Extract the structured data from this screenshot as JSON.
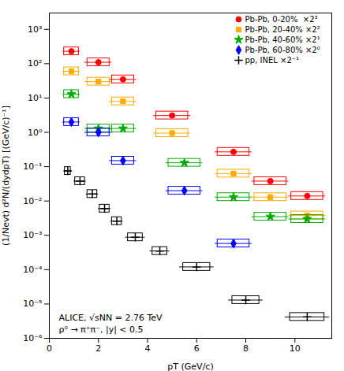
{
  "chart_data": {
    "type": "scatter",
    "xlabel": "pT (GeV/c)",
    "ylabel": "(1/Nevt) d²N/(dydpT) [(GeV/c)⁻¹]",
    "xlim": [
      0,
      11.5
    ],
    "xticks": [
      0,
      2,
      4,
      6,
      8,
      10
    ],
    "ylim": [
      1e-06,
      3000
    ],
    "yticks": [
      {
        "value": 1e-06,
        "label": "10⁻⁶"
      },
      {
        "value": 1e-05,
        "label": "10⁻⁵"
      },
      {
        "value": 0.0001,
        "label": "10⁻⁴"
      },
      {
        "value": 0.001,
        "label": "10⁻³"
      },
      {
        "value": 0.01,
        "label": "10⁻²"
      },
      {
        "value": 0.1,
        "label": "10⁻¹"
      },
      {
        "value": 1,
        "label": "10⁰"
      },
      {
        "value": 10,
        "label": "10¹"
      },
      {
        "value": 100,
        "label": "10²"
      },
      {
        "value": 1000,
        "label": "10³"
      }
    ],
    "log": "y",
    "grid": false,
    "legend": "upper right",
    "annotations": [
      "ALICE, √sNN = 2.76 TeV",
      "ρ⁰ → π⁺π⁻, |y| < 0.5"
    ],
    "series": [
      {
        "name": "Pb-Pb, 0-20%  ×2³",
        "color": "#ff0000",
        "marker": "circle",
        "x": [
          0.9,
          2.0,
          3.0,
          5.0,
          7.5,
          9.0,
          10.5
        ],
        "values": [
          230.0,
          110.0,
          35.0,
          3.1,
          0.27,
          0.038,
          0.014
        ],
        "xerr": [
          0.35,
          0.55,
          0.55,
          0.75,
          0.75,
          0.75,
          0.75
        ],
        "xerr_sys": [
          0.3,
          0.45,
          0.45,
          0.65,
          0.65,
          0.65,
          0.65
        ]
      },
      {
        "name": "Pb-Pb, 20-40% ×2²",
        "color": "#ffaa00",
        "marker": "square",
        "x": [
          0.9,
          2.0,
          3.0,
          5.0,
          7.5,
          9.0,
          10.5
        ],
        "values": [
          60.0,
          30.0,
          8.0,
          0.95,
          0.063,
          0.013,
          0.0038
        ],
        "xerr": [
          0.35,
          0.55,
          0.55,
          0.75,
          0.75,
          0.75,
          0.75
        ],
        "xerr_sys": [
          0.3,
          0.45,
          0.45,
          0.65,
          0.65,
          0.65,
          0.65
        ]
      },
      {
        "name": "Pb-Pb, 40-60% ×2¹",
        "color": "#00aa00",
        "marker": "star",
        "x": [
          0.9,
          2.0,
          3.0,
          5.5,
          7.5,
          9.0,
          10.5
        ],
        "values": [
          13.0,
          1.3,
          1.3,
          0.13,
          0.013,
          0.0035,
          0.003
        ],
        "xerr": [
          0.35,
          0.55,
          0.55,
          0.75,
          0.75,
          0.75,
          0.75
        ],
        "xerr_sys": [
          0.3,
          0.45,
          0.45,
          0.65,
          0.65,
          0.65,
          0.65
        ]
      },
      {
        "name": "Pb-Pb, 60-80% ×2⁰",
        "color": "#0000ff",
        "marker": "diamond",
        "x": [
          0.9,
          2.0,
          3.0,
          5.5,
          7.5
        ],
        "values": [
          2.0,
          1.0,
          0.15,
          0.02,
          0.00058
        ],
        "xerr": [
          0.35,
          0.55,
          0.55,
          0.75,
          0.75
        ],
        "xerr_sys": [
          0.3,
          0.45,
          0.45,
          0.65,
          0.65
        ]
      },
      {
        "name": "pp, INEL ×2⁻¹",
        "color": "#000000",
        "marker": "plus",
        "x": [
          0.75,
          1.25,
          1.75,
          2.25,
          2.75,
          3.5,
          4.5,
          6.0,
          8.0,
          10.5
        ],
        "values": [
          0.075,
          0.038,
          0.016,
          0.006,
          0.0026,
          0.00088,
          0.00035,
          0.00012,
          1.3e-05,
          4.2e-06
        ],
        "xerr": [
          0.15,
          0.25,
          0.25,
          0.25,
          0.25,
          0.4,
          0.4,
          0.7,
          0.7,
          0.9
        ],
        "xerr_sys": [
          0.12,
          0.2,
          0.2,
          0.2,
          0.2,
          0.3,
          0.3,
          0.55,
          0.55,
          0.7
        ]
      }
    ]
  }
}
